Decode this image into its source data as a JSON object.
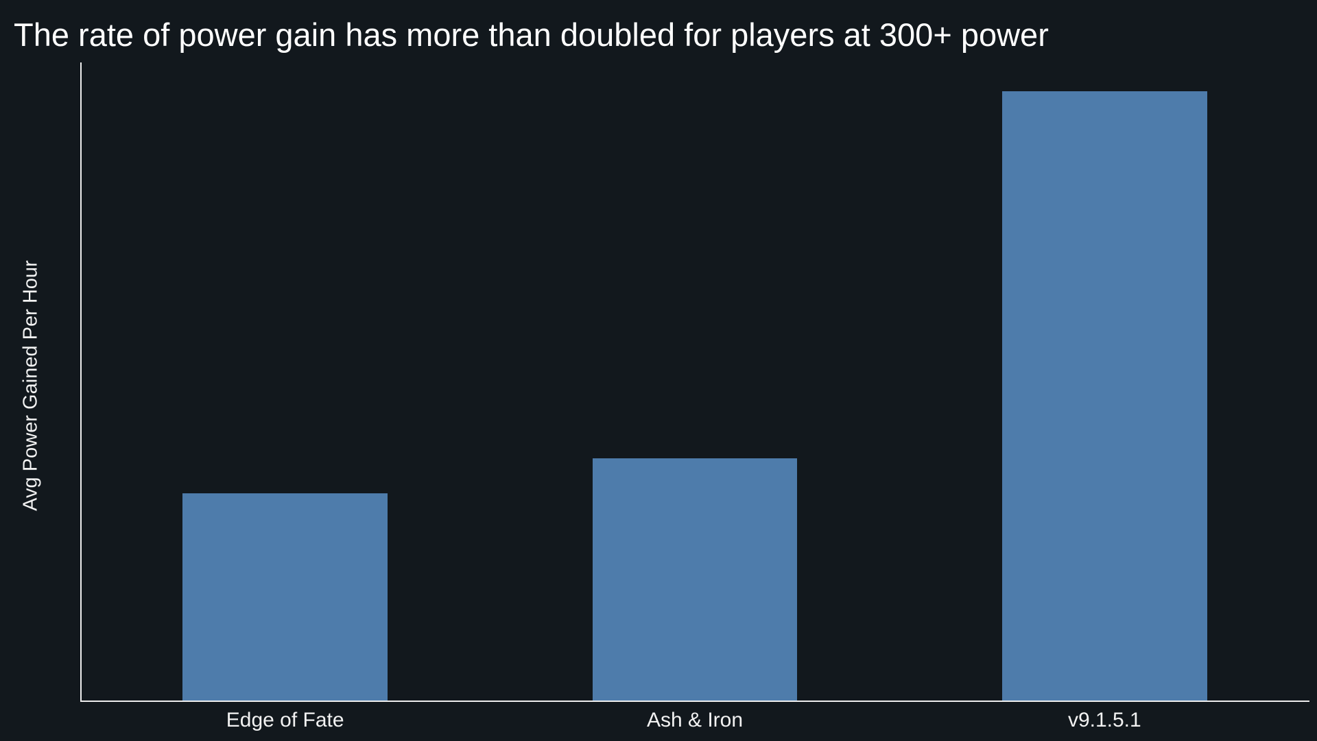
{
  "page": {
    "background": "#12181d"
  },
  "colors": {
    "bar": "#4e7cab",
    "axis": "#eeeeee",
    "title_text": "#ffffff",
    "label_text": "#f2f2f2"
  },
  "chart_data": {
    "type": "bar",
    "title": "The rate of power gain has more than doubled for players at 300+ power",
    "xlabel": "",
    "ylabel": "Avg Power Gained Per Hour",
    "categories": [
      "Edge of Fate",
      "Ash & Iron",
      "v9.1.5.1"
    ],
    "values": [
      1.0,
      1.17,
      2.94
    ],
    "ylim": [
      0,
      3.08
    ],
    "y_tick_labels": [],
    "x_tick_labels": [
      "Edge of Fate",
      "Ash & Iron",
      "v9.1.5.1"
    ],
    "bar_width_fraction": 0.5,
    "grid": false,
    "legend": "none"
  }
}
